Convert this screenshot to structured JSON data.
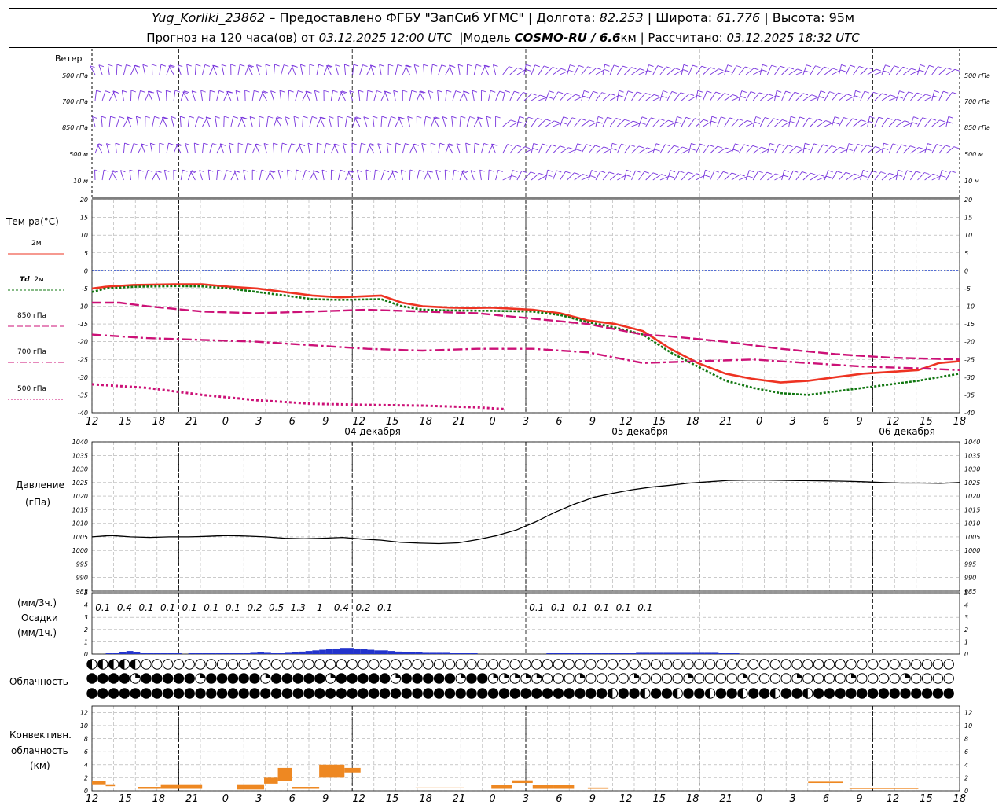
{
  "header": {
    "station": "Yug_Korliki_23862",
    "provided_by": "– Предоставлено ФГБУ \"ЗапСиб УГМС\"",
    "lon_label": "Долгота:",
    "lon": "82.253",
    "lat_label": "Широта:",
    "lat": "61.776",
    "alt_label": "Высота:",
    "alt": "95м",
    "forecast_label": "Прогноз на 120 часа(ов) от",
    "forecast_time": "03.12.2025 12:00 UTC",
    "model_label": "Модель",
    "model": "COSMO-RU / 6.6",
    "model_unit": "км",
    "calc_label": "Рассчитано:",
    "calc_time": "03.12.2025 18:32 UTC"
  },
  "labels": {
    "wind": "Ветер",
    "wind_levels": [
      "500 гПа",
      "700 гПа",
      "850 гПа",
      "500 м",
      "10  м"
    ],
    "temp_title": "Тем-ра(°C)",
    "t2m": "2м",
    "td_prefix": "Td",
    "td_2m": "2м",
    "t850": "850 гПа",
    "t700": "700 гПа",
    "t500": "500 гПа",
    "pressure_title": "Давление",
    "pressure_unit": "(гПа)",
    "precip_top": "(мм/3ч.)",
    "precip_title": "Осадки",
    "precip_bottom": "(мм/1ч.)",
    "cloud_title": "Облачность",
    "conv_line1": "Конвективн.",
    "conv_line2": "облачность",
    "conv_line3": "(км)"
  },
  "colors": {
    "wind": "#7733dd",
    "t2m": "#ee3322",
    "td": "#117711",
    "t850": "#cc1177",
    "zero": "#2244cc",
    "pressure": "#000000",
    "precip": "#2233cc",
    "conv": "#ee8822",
    "grid": "#999999"
  },
  "chart_data": [
    {
      "type": "line",
      "panel": "temperature",
      "x_hours_labels": [
        "12",
        "15",
        "18",
        "21",
        "0",
        "3",
        "6",
        "9",
        "12",
        "15",
        "18",
        "21",
        "0",
        "3",
        "6",
        "9",
        "12",
        "15",
        "18",
        "21",
        "0",
        "3",
        "6",
        "9",
        "12",
        "15",
        "18"
      ],
      "date_labels": [
        "04 декабря",
        "05 декабря",
        "06 декабря"
      ],
      "ylim": [
        -40,
        20
      ],
      "yticks": [
        20,
        15,
        10,
        5,
        0,
        -5,
        -10,
        -15,
        -20,
        -25,
        -30,
        -35,
        -40
      ],
      "x_hours": [
        0,
        3,
        6,
        9,
        12,
        15,
        18,
        21,
        24,
        27,
        30,
        33,
        36,
        39,
        42,
        45,
        48,
        51,
        54,
        57,
        60,
        63,
        66,
        69,
        72,
        75,
        78,
        81,
        84,
        87,
        90,
        93,
        96,
        99,
        102,
        105,
        108,
        111,
        114,
        117,
        120,
        123,
        126,
        129,
        132,
        135,
        138,
        141,
        144,
        147,
        150,
        153,
        156,
        159,
        162,
        165,
        168,
        171,
        174,
        177,
        180,
        183,
        186,
        189,
        192,
        195,
        198,
        201,
        204,
        207,
        210,
        213,
        216,
        219,
        222,
        225,
        228,
        231,
        234,
        237,
        240,
        243,
        246,
        249,
        252,
        255,
        258,
        261,
        264,
        267,
        270,
        273,
        276,
        279,
        282,
        285,
        288,
        291,
        294,
        297,
        300,
        303,
        306,
        309,
        312,
        315,
        318,
        321,
        324,
        327,
        330,
        333,
        336,
        339,
        342,
        345,
        348,
        351,
        354,
        357,
        360,
        363,
        366,
        369,
        372,
        375,
        378
      ],
      "series": [
        {
          "name": "2м",
          "x": [
            0,
            6,
            18,
            36,
            48,
            60,
            72,
            84,
            96,
            108,
            126,
            135,
            144,
            150,
            156,
            165,
            174,
            180,
            192,
            204,
            216,
            228,
            240,
            252,
            264,
            276,
            288,
            300,
            312,
            324,
            336,
            348,
            360,
            369,
            378
          ],
          "values": [
            -5,
            -4.5,
            -4,
            -3.8,
            -3.8,
            -4.5,
            -5,
            -6,
            -7,
            -7.5,
            -7,
            -9,
            -10,
            -10.2,
            -10.4,
            -10.5,
            -10.4,
            -10.6,
            -11,
            -12,
            -14,
            -15,
            -17,
            -22,
            -26,
            -29,
            -30.5,
            -31.5,
            -31,
            -30,
            -29,
            -28.5,
            -28,
            -26,
            -25.5
          ]
        },
        {
          "name": "Td 2м",
          "x": [
            0,
            6,
            18,
            36,
            48,
            60,
            72,
            84,
            96,
            108,
            126,
            135,
            144,
            156,
            174,
            192,
            204,
            216,
            228,
            240,
            252,
            264,
            276,
            288,
            300,
            312,
            324,
            336,
            348,
            360,
            378
          ],
          "values": [
            -6,
            -5,
            -4.5,
            -4.3,
            -4.4,
            -5,
            -6,
            -7,
            -8,
            -8.2,
            -8,
            -10,
            -11,
            -11.2,
            -11.3,
            -11.5,
            -12.5,
            -14.5,
            -16,
            -18,
            -23,
            -27,
            -31,
            -33,
            -34.5,
            -35,
            -34,
            -33,
            -32,
            -31,
            -29
          ]
        },
        {
          "name": "850 гПа",
          "x": [
            0,
            12,
            24,
            48,
            72,
            96,
            120,
            144,
            168,
            192,
            216,
            240,
            252,
            276,
            300,
            324,
            348,
            378
          ],
          "values": [
            -9,
            -9,
            -10,
            -11.5,
            -12,
            -11.5,
            -11,
            -11.5,
            -12,
            -13.5,
            -15,
            -18,
            -18.5,
            -20,
            -22,
            -23.5,
            -24.5,
            -25
          ]
        },
        {
          "name": "700 гПа",
          "x": [
            0,
            24,
            48,
            72,
            96,
            120,
            144,
            168,
            192,
            216,
            240,
            264,
            288,
            312,
            336,
            360,
            378
          ],
          "values": [
            -18,
            -19,
            -19.5,
            -20,
            -21,
            -22,
            -22.5,
            -22,
            -22,
            -23,
            -26,
            -25.5,
            -25,
            -26,
            -27,
            -27.5,
            -28
          ]
        },
        {
          "name": "500 гПа",
          "x": [
            0,
            24,
            48,
            72,
            96,
            120,
            144,
            168,
            180
          ],
          "values": [
            -32,
            -33,
            -35,
            -36.5,
            -37.5,
            -37.8,
            -38,
            -38.5,
            -39
          ]
        }
      ]
    },
    {
      "type": "line",
      "panel": "pressure",
      "ylim": [
        985,
        1040
      ],
      "yticks": [
        1040,
        1035,
        1030,
        1025,
        1020,
        1015,
        1010,
        1005,
        1000,
        995,
        990,
        985
      ],
      "series": [
        {
          "name": "Давление",
          "x": [
            0,
            12,
            24,
            36,
            48,
            60,
            72,
            84,
            96,
            108,
            120,
            132,
            144,
            156,
            168,
            180,
            192,
            204,
            216,
            228,
            240,
            252,
            264,
            276,
            288,
            300,
            312,
            324,
            336,
            348,
            360,
            372,
            384,
            396,
            408,
            420,
            432,
            444,
            456,
            468,
            480,
            492,
            504,
            516,
            528,
            540
          ],
          "values": [
            1005,
            1005.5,
            1005,
            1004.8,
            1005,
            1005,
            1005.2,
            1005.5,
            1005.3,
            1005,
            1004.5,
            1004.3,
            1004.5,
            1004.8,
            1004.2,
            1003.8,
            1003,
            1002.7,
            1002.5,
            1002.8,
            1004,
            1005.5,
            1007.5,
            1010.5,
            1014,
            1017,
            1019.5,
            1021,
            1022.3,
            1023.3,
            1024,
            1024.8,
            1025.3,
            1025.8,
            1025.9,
            1025.9,
            1025.8,
            1025.7,
            1025.6,
            1025.5,
            1025.3,
            1025,
            1024.8,
            1024.8,
            1024.7,
            1025
          ]
        }
      ]
    },
    {
      "type": "bar",
      "panel": "precipitation",
      "ylim": [
        0,
        5
      ],
      "yticks": [
        5,
        4,
        3,
        2,
        1,
        0
      ],
      "three_hour_totals": [
        "0.1",
        "0.4",
        "0.1",
        "0.1",
        "0.1",
        "0.1",
        "0.1",
        "0.2",
        "0.5",
        "1.3",
        "1",
        "0.4",
        "0.2",
        "0.1",
        "",
        "",
        "",
        "",
        "",
        "",
        "0.1",
        "0.1",
        "0.1",
        "0.1",
        "0.1",
        "0.1"
      ],
      "hourly_mm": [
        0,
        0,
        0.05,
        0.05,
        0.15,
        0.25,
        0.15,
        0.05,
        0.05,
        0.05,
        0.05,
        0.05,
        0.02,
        0,
        0.05,
        0.05,
        0.05,
        0.05,
        0.05,
        0.05,
        0.05,
        0.05,
        0.05,
        0.1,
        0.15,
        0.1,
        0.05,
        0.05,
        0.1,
        0.15,
        0.2,
        0.25,
        0.3,
        0.35,
        0.4,
        0.45,
        0.5,
        0.5,
        0.45,
        0.4,
        0.35,
        0.3,
        0.3,
        0.25,
        0.2,
        0.15,
        0.15,
        0.15,
        0.1,
        0.1,
        0.1,
        0.1,
        0.05,
        0.05,
        0.05,
        0.02,
        0,
        0,
        0,
        0,
        0,
        0,
        0,
        0,
        0,
        0,
        0.02,
        0.02,
        0.02,
        0.02,
        0.02,
        0.02,
        0.02,
        0.02,
        0.02,
        0.02,
        0.05,
        0.05,
        0.05,
        0.1,
        0.1,
        0.1,
        0.1,
        0.1,
        0.1,
        0.1,
        0.1,
        0.1,
        0.1,
        0.1,
        0.1,
        0.05,
        0.05,
        0.02,
        0,
        0,
        0,
        0,
        0,
        0,
        0,
        0,
        0,
        0,
        0,
        0,
        0,
        0,
        0,
        0,
        0,
        0,
        0,
        0,
        0,
        0,
        0,
        0,
        0,
        0,
        0,
        0,
        0,
        0,
        0,
        0
      ]
    },
    {
      "type": "bar",
      "panel": "convective_cloud",
      "ylim": [
        0,
        13
      ],
      "yticks": [
        12,
        10,
        8,
        6,
        4,
        2,
        0
      ],
      "segments": [
        {
          "x0": 0,
          "x1": 6,
          "bottom": 1,
          "top": 1.5
        },
        {
          "x0": 6,
          "x1": 10,
          "bottom": 0.7,
          "top": 1
        },
        {
          "x0": 20,
          "x1": 30,
          "bottom": 0.3,
          "top": 0.6
        },
        {
          "x0": 30,
          "x1": 38,
          "bottom": 0.3,
          "top": 1
        },
        {
          "x0": 38,
          "x1": 48,
          "bottom": 0.3,
          "top": 1
        },
        {
          "x0": 63,
          "x1": 75,
          "bottom": 0.2,
          "top": 1
        },
        {
          "x0": 75,
          "x1": 81,
          "bottom": 1.1,
          "top": 2
        },
        {
          "x0": 81,
          "x1": 87,
          "bottom": 1.5,
          "top": 3.5
        },
        {
          "x0": 87,
          "x1": 99,
          "bottom": 0.3,
          "top": 0.6
        },
        {
          "x0": 99,
          "x1": 110,
          "bottom": 2,
          "top": 4
        },
        {
          "x0": 110,
          "x1": 117,
          "bottom": 2.8,
          "top": 3.5
        },
        {
          "x0": 141,
          "x1": 162,
          "bottom": 0.4,
          "top": 0.5
        },
        {
          "x0": 174,
          "x1": 183,
          "bottom": 0.3,
          "top": 0.9
        },
        {
          "x0": 183,
          "x1": 192,
          "bottom": 1.2,
          "top": 1.6
        },
        {
          "x0": 192,
          "x1": 201,
          "bottom": 0.3,
          "top": 0.9
        },
        {
          "x0": 201,
          "x1": 210,
          "bottom": 0.3,
          "top": 0.9
        },
        {
          "x0": 216,
          "x1": 225,
          "bottom": 0.3,
          "top": 0.5
        },
        {
          "x0": 312,
          "x1": 327,
          "bottom": 1.2,
          "top": 1.4
        },
        {
          "x0": 330,
          "x1": 360,
          "bottom": 0.3,
          "top": 0.4
        }
      ]
    }
  ]
}
